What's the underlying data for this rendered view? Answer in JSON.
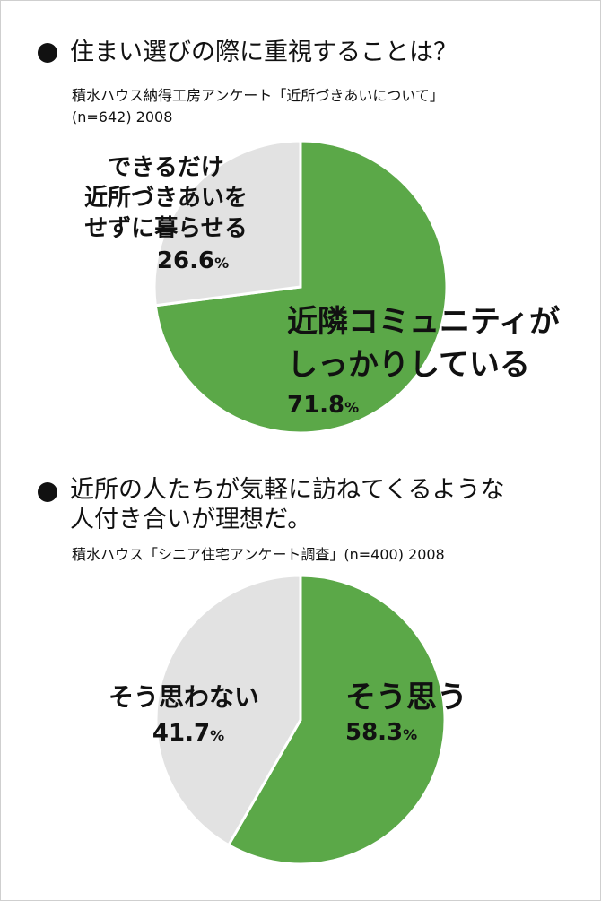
{
  "chart_data": [
    {
      "type": "pie",
      "title": "住まい選びの際に重視することは？",
      "source_line1": "積水ハウス納得工房アンケート「近所づきあいについて」",
      "source_line2": "(n=642) 2008",
      "slices": [
        {
          "label_lines": [
            "近隣コミュニティが",
            "しっかりしている"
          ],
          "value": 71.8,
          "value_text": "71.8",
          "color": "#5ba848"
        },
        {
          "label_lines": [
            "できるだけ",
            "近所づきあいを",
            "せずに暮らせる"
          ],
          "value": 26.6,
          "value_text": "26.6",
          "color": "#e2e2e2"
        }
      ],
      "unit": "%"
    },
    {
      "type": "pie",
      "title_line1": "近所の人たちが気軽に訪ねてくるような",
      "title_line2": "人付き合いが理想だ。",
      "source_line1": "積水ハウス「シニア住宅アンケート調査」(n=400) 2008",
      "slices": [
        {
          "label_lines": [
            "そう思う"
          ],
          "value": 58.3,
          "value_text": "58.3",
          "color": "#5ba848"
        },
        {
          "label_lines": [
            "そう思わない"
          ],
          "value": 41.7,
          "value_text": "41.7",
          "color": "#e2e2e2"
        }
      ],
      "unit": "%"
    }
  ]
}
